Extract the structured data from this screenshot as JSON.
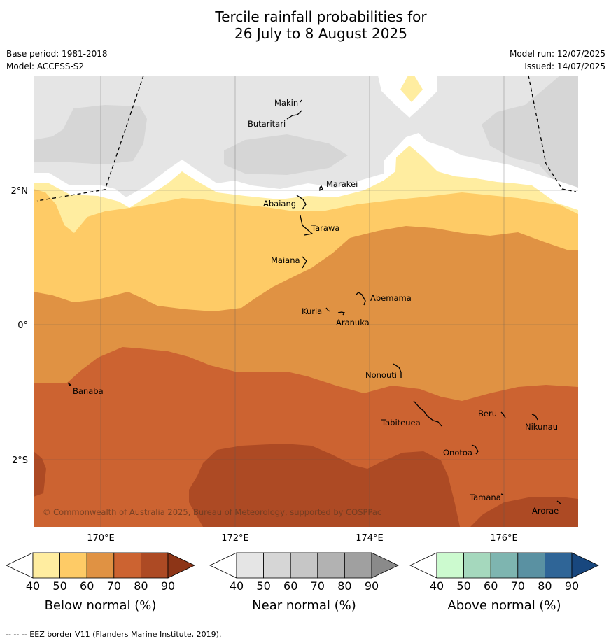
{
  "title": {
    "line1": "Tercile rainfall probabilities for",
    "line2": "26 July to 8 August 2025"
  },
  "meta": {
    "base_period": "Base period: 1981-2018",
    "model": "Model: ACCESS-S2",
    "model_run": "Model run: 12/07/2025",
    "issued": "Issued: 14/07/2025"
  },
  "map": {
    "lat_labels": [
      "2°N",
      "0°",
      "2°S"
    ],
    "lon_labels": [
      "170°E",
      "172°E",
      "174°E",
      "176°E"
    ],
    "places": [
      "Makin",
      "Butaritari",
      "Marakei",
      "Abaiang",
      "Tarawa",
      "Maiana",
      "Abemama",
      "Kuria",
      "Aranuka",
      "Nonouti",
      "Banaba",
      "Beru",
      "Nikunau",
      "Tabiteuea",
      "Onotoa",
      "Tamana",
      "Arorae"
    ],
    "copyright": "© Commonwealth of Australia 2025, Bureau of Meteorology, supported by COSPPac",
    "colors": {
      "near_normal_40": "#e5e5e5",
      "near_normal_50": "#d6d6d6",
      "below_50": "#ffeda0",
      "below_60": "#fecb66",
      "below_70": "#e09243",
      "below_80": "#cc6331",
      "below_90": "#ad4a24"
    }
  },
  "legends": [
    {
      "label": "Below normal (%)",
      "ticks": [
        "40",
        "50",
        "60",
        "70",
        "80",
        "90"
      ],
      "colors": [
        "#ffffff",
        "#ffeda0",
        "#fecb66",
        "#e09243",
        "#cc6331",
        "#ad4a24",
        "#8d3517"
      ]
    },
    {
      "label": "Near normal (%)",
      "ticks": [
        "40",
        "50",
        "60",
        "70",
        "80",
        "90"
      ],
      "colors": [
        "#ffffff",
        "#e5e5e5",
        "#d6d6d6",
        "#c6c6c6",
        "#b2b2b2",
        "#a0a0a0",
        "#8a8a8a"
      ]
    },
    {
      "label": "Above normal (%)",
      "ticks": [
        "40",
        "50",
        "60",
        "70",
        "80",
        "90"
      ],
      "colors": [
        "#ffffff",
        "#ccfacf",
        "#a5d8bd",
        "#7eb5b0",
        "#5a91a2",
        "#2f6597",
        "#18477e"
      ]
    }
  ],
  "footnote": "-- -- -- EEZ border V11 (Flanders Marine Institute, 2019)."
}
